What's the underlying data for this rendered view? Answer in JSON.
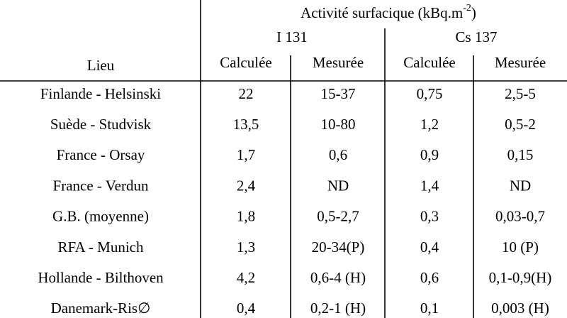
{
  "header": {
    "title": {
      "main": "Activité surfacique (kBq.m",
      "sup": "-2",
      "end": ")"
    },
    "groups": [
      "I 131",
      "Cs 137"
    ],
    "row_label": "Lieu",
    "subcolumns": [
      "Calculée",
      "Mesurée",
      "Calculée",
      "Mesurée"
    ]
  },
  "table": {
    "rows": [
      [
        "Finlande - Helsinski",
        "22",
        "15-37",
        "0,75",
        "2,5-5"
      ],
      [
        "Suède - Studvisk",
        "13,5",
        "10-80",
        "1,2",
        "0,5-2"
      ],
      [
        "France - Orsay",
        "1,7",
        "0,6",
        "0,9",
        "0,15"
      ],
      [
        "France - Verdun",
        "2,4",
        "ND",
        "1,4",
        "ND"
      ],
      [
        "G.B. (moyenne)",
        "1,8",
        "0,5-2,7",
        "0,3",
        "0,03-0,7"
      ],
      [
        "RFA - Munich",
        "1,3",
        "20-34(P)",
        "0,4",
        "10 (P)"
      ],
      [
        "Hollande - Bilthoven",
        "4,2",
        "0,6-4 (H)",
        "0,6",
        "0,1-0,9(H)"
      ],
      [
        "Danemark-Ris∅",
        "0,4",
        "0,2-1 (H)",
        "0,1",
        "0,003 (H)"
      ]
    ]
  }
}
